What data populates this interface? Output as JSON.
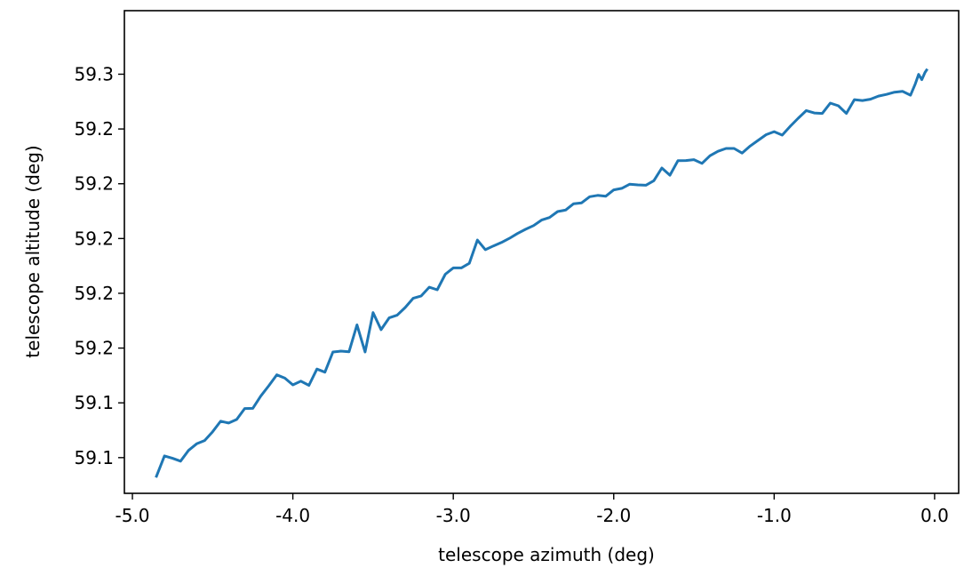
{
  "chart_data": {
    "type": "line",
    "title": "",
    "xlabel": "telescope azimuth (deg)",
    "ylabel": "telescope altitude (deg)",
    "xlim": [
      -5.05,
      0.15
    ],
    "ylim": [
      59.0837,
      59.304
    ],
    "x_ticks": [
      {
        "value": -5.0,
        "label": "-5.0"
      },
      {
        "value": -4.0,
        "label": "-4.0"
      },
      {
        "value": -3.0,
        "label": "-3.0"
      },
      {
        "value": -2.0,
        "label": "-2.0"
      },
      {
        "value": -1.0,
        "label": "-1.0"
      },
      {
        "value": 0.0,
        "label": "0.0"
      }
    ],
    "y_ticks": [
      {
        "value": 59.1,
        "label": "59.1"
      },
      {
        "value": 59.125,
        "label": "59.1"
      },
      {
        "value": 59.15,
        "label": "59.2"
      },
      {
        "value": 59.175,
        "label": "59.2"
      },
      {
        "value": 59.2,
        "label": "59.2"
      },
      {
        "value": 59.225,
        "label": "59.2"
      },
      {
        "value": 59.25,
        "label": "59.2"
      },
      {
        "value": 59.275,
        "label": "59.3"
      }
    ],
    "grid": false,
    "series": [
      {
        "color": "#1f77b4",
        "points": [
          [
            -4.85,
            59.0915
          ],
          [
            -4.8,
            59.1008
          ],
          [
            -4.75,
            59.0997
          ],
          [
            -4.7,
            59.0984
          ],
          [
            -4.65,
            59.1033
          ],
          [
            -4.6,
            59.1063
          ],
          [
            -4.55,
            59.1078
          ],
          [
            -4.5,
            59.1118
          ],
          [
            -4.45,
            59.1166
          ],
          [
            -4.4,
            59.1158
          ],
          [
            -4.35,
            59.1174
          ],
          [
            -4.3,
            59.1224
          ],
          [
            -4.25,
            59.1225
          ],
          [
            -4.2,
            59.1281
          ],
          [
            -4.15,
            59.1328
          ],
          [
            -4.1,
            59.1378
          ],
          [
            -4.05,
            59.1363
          ],
          [
            -4.0,
            59.1332
          ],
          [
            -3.95,
            59.1349
          ],
          [
            -3.9,
            59.133
          ],
          [
            -3.85,
            59.1404
          ],
          [
            -3.8,
            59.139
          ],
          [
            -3.75,
            59.1482
          ],
          [
            -3.7,
            59.1486
          ],
          [
            -3.65,
            59.1483
          ],
          [
            -3.6,
            59.1606
          ],
          [
            -3.55,
            59.1482
          ],
          [
            -3.5,
            59.1662
          ],
          [
            -3.45,
            59.1584
          ],
          [
            -3.4,
            59.1638
          ],
          [
            -3.35,
            59.165
          ],
          [
            -3.3,
            59.1685
          ],
          [
            -3.25,
            59.1727
          ],
          [
            -3.2,
            59.1738
          ],
          [
            -3.15,
            59.1778
          ],
          [
            -3.1,
            59.1766
          ],
          [
            -3.05,
            59.1837
          ],
          [
            -3.0,
            59.1866
          ],
          [
            -2.95,
            59.1866
          ],
          [
            -2.9,
            59.1887
          ],
          [
            -2.85,
            59.1993
          ],
          [
            -2.8,
            59.1949
          ],
          [
            -2.75,
            59.1966
          ],
          [
            -2.7,
            59.1982
          ],
          [
            -2.65,
            59.2001
          ],
          [
            -2.6,
            59.2023
          ],
          [
            -2.55,
            59.2042
          ],
          [
            -2.5,
            59.2059
          ],
          [
            -2.45,
            59.2084
          ],
          [
            -2.4,
            59.2096
          ],
          [
            -2.35,
            59.2123
          ],
          [
            -2.3,
            59.213
          ],
          [
            -2.25,
            59.2159
          ],
          [
            -2.2,
            59.2163
          ],
          [
            -2.15,
            59.2191
          ],
          [
            -2.1,
            59.2197
          ],
          [
            -2.05,
            59.2193
          ],
          [
            -2.0,
            59.2222
          ],
          [
            -1.95,
            59.2229
          ],
          [
            -1.9,
            59.2248
          ],
          [
            -1.85,
            59.2245
          ],
          [
            -1.8,
            59.2243
          ],
          [
            -1.75,
            59.2264
          ],
          [
            -1.7,
            59.2322
          ],
          [
            -1.65,
            59.2289
          ],
          [
            -1.6,
            59.2355
          ],
          [
            -1.55,
            59.2356
          ],
          [
            -1.5,
            59.236
          ],
          [
            -1.45,
            59.2343
          ],
          [
            -1.4,
            59.2378
          ],
          [
            -1.35,
            59.2398
          ],
          [
            -1.3,
            59.2411
          ],
          [
            -1.25,
            59.2411
          ],
          [
            -1.2,
            59.239
          ],
          [
            -1.15,
            59.2422
          ],
          [
            -1.1,
            59.2448
          ],
          [
            -1.05,
            59.2474
          ],
          [
            -1.0,
            59.2488
          ],
          [
            -0.95,
            59.2472
          ],
          [
            -0.9,
            59.2512
          ],
          [
            -0.85,
            59.2549
          ],
          [
            -0.8,
            59.2584
          ],
          [
            -0.75,
            59.2573
          ],
          [
            -0.7,
            59.2571
          ],
          [
            -0.65,
            59.2618
          ],
          [
            -0.6,
            59.2606
          ],
          [
            -0.55,
            59.2571
          ],
          [
            -0.5,
            59.2634
          ],
          [
            -0.45,
            59.263
          ],
          [
            -0.4,
            59.2636
          ],
          [
            -0.35,
            59.265
          ],
          [
            -0.3,
            59.2658
          ],
          [
            -0.25,
            59.2668
          ],
          [
            -0.2,
            59.2672
          ],
          [
            -0.15,
            59.2654
          ],
          [
            -0.12,
            59.2706
          ],
          [
            -0.1,
            59.2749
          ],
          [
            -0.08,
            59.2725
          ],
          [
            -0.06,
            59.2758
          ],
          [
            -0.05,
            59.2769
          ]
        ]
      }
    ]
  }
}
